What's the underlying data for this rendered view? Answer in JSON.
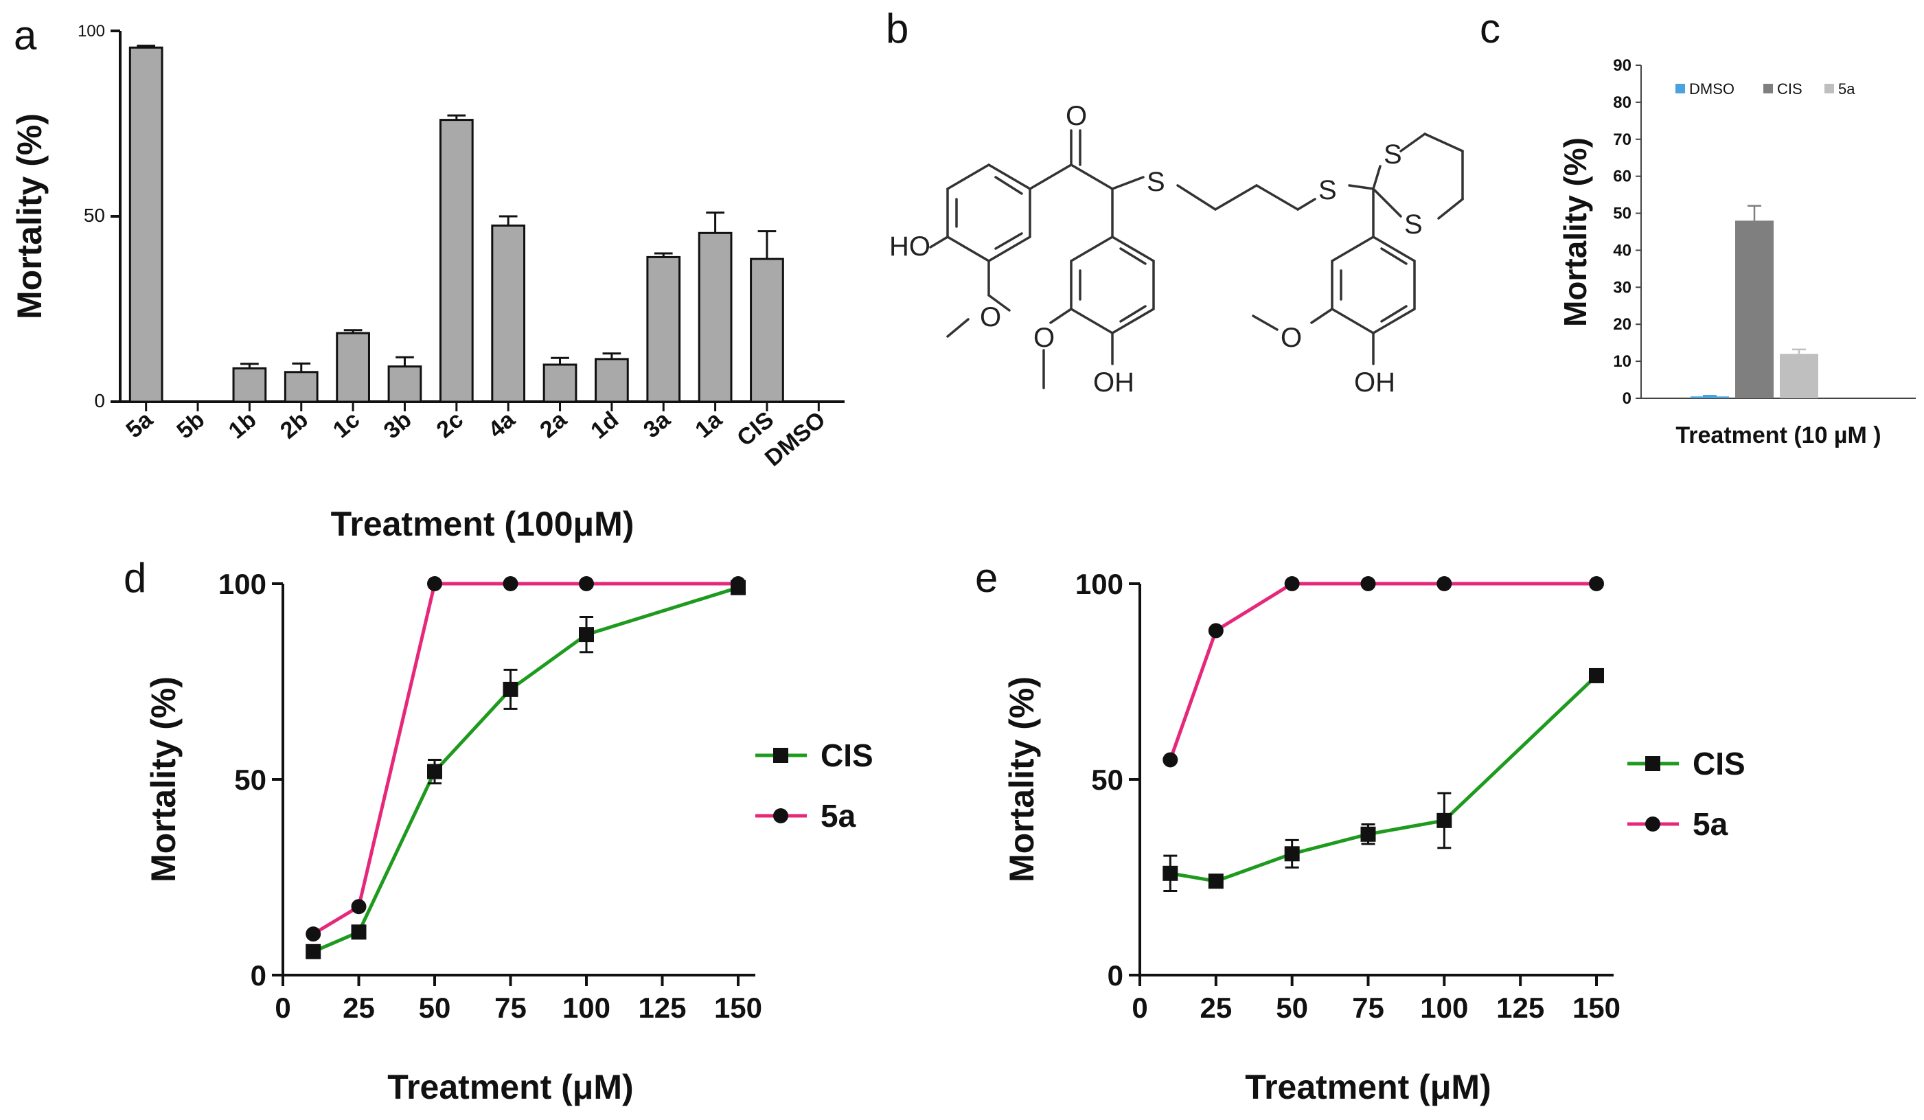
{
  "panels": {
    "a": "a",
    "b": "b",
    "c": "c",
    "d": "d",
    "e": "e"
  },
  "chart_data": [
    {
      "panel": "a",
      "type": "bar",
      "title": "",
      "xlabel": "Treatment (100μM)",
      "ylabel": "Mortality (%)",
      "ylim": [
        0,
        100
      ],
      "yticks": [
        0,
        50,
        100
      ],
      "categories": [
        "5a",
        "5b",
        "1b",
        "2b",
        "1c",
        "3b",
        "2c",
        "4a",
        "2a",
        "1d",
        "3a",
        "1a",
        "CIS",
        "DMSO"
      ],
      "values": [
        95.5,
        0,
        9,
        8,
        18.5,
        9.5,
        76,
        47.5,
        10,
        11.5,
        39,
        45.5,
        38.5,
        0
      ],
      "errors": [
        0.5,
        0,
        1.2,
        2.3,
        0.8,
        2.5,
        1.2,
        2.5,
        1.8,
        1.5,
        1,
        5.5,
        7.5,
        0
      ],
      "bar_color": "#a9a9a9"
    },
    {
      "panel": "c",
      "type": "bar",
      "title": "",
      "xlabel": "Treatment (10 µM )",
      "ylabel": "Mortality (%)",
      "ylim": [
        0,
        90
      ],
      "yticks": [
        0,
        10,
        20,
        30,
        40,
        50,
        60,
        70,
        80,
        90
      ],
      "series": [
        {
          "name": "DMSO",
          "value": 0.5,
          "error": 0.2,
          "color": "#4aa3df"
        },
        {
          "name": "CIS",
          "value": 48,
          "error": 4,
          "color": "#7f7f7f"
        },
        {
          "name": "5a",
          "value": 12,
          "error": 1.2,
          "color": "#bfbfbf"
        }
      ],
      "legend": "top"
    },
    {
      "panel": "d",
      "type": "line",
      "title": "",
      "xlabel": "Treatment (μM)",
      "ylabel": "Mortality (%)",
      "xlim": [
        0,
        150
      ],
      "ylim": [
        0,
        100
      ],
      "xticks": [
        0,
        25,
        50,
        75,
        100,
        125,
        150
      ],
      "yticks": [
        0,
        50,
        100
      ],
      "series": [
        {
          "name": "CIS",
          "marker": "square",
          "color": "#1e9a1e",
          "x": [
            10,
            25,
            50,
            75,
            100,
            150
          ],
          "y": [
            6,
            11,
            52,
            73,
            87,
            99
          ],
          "err": [
            1.5,
            1.5,
            3,
            5,
            4.5,
            1
          ]
        },
        {
          "name": "5a",
          "marker": "circle",
          "color": "#e6287a",
          "x": [
            10,
            25,
            50,
            75,
            100,
            150
          ],
          "y": [
            10.5,
            17.5,
            100,
            100,
            100,
            100
          ],
          "err": [
            0,
            0,
            0,
            0,
            0,
            0
          ]
        }
      ],
      "legend": "right"
    },
    {
      "panel": "e",
      "type": "line",
      "title": "",
      "xlabel": "Treatment (μM)",
      "ylabel": "Mortality (%)",
      "xlim": [
        0,
        150
      ],
      "ylim": [
        0,
        100
      ],
      "xticks": [
        0,
        25,
        50,
        75,
        100,
        125,
        150
      ],
      "yticks": [
        0,
        50,
        100
      ],
      "series": [
        {
          "name": "CIS",
          "marker": "square",
          "color": "#1e9a1e",
          "x": [
            10,
            25,
            50,
            75,
            100,
            150
          ],
          "y": [
            26,
            24,
            31,
            36,
            39.5,
            76.5
          ],
          "err": [
            4.5,
            1.5,
            3.5,
            2.5,
            7,
            1
          ]
        },
        {
          "name": "5a",
          "marker": "circle",
          "color": "#e6287a",
          "x": [
            10,
            25,
            50,
            75,
            100,
            150
          ],
          "y": [
            55,
            88,
            100,
            100,
            100,
            100
          ],
          "err": [
            0,
            0,
            0,
            0,
            0,
            0
          ]
        }
      ],
      "legend": "right"
    }
  ],
  "molecule": {
    "atoms": {
      "o_carbonyl": "O",
      "s_left": "S",
      "s_mid": "S",
      "s_ring_top": "S",
      "s_ring_bottom": "S",
      "ho_left": "HO",
      "oh_middle": "OH",
      "oh_right": "OH"
    }
  }
}
